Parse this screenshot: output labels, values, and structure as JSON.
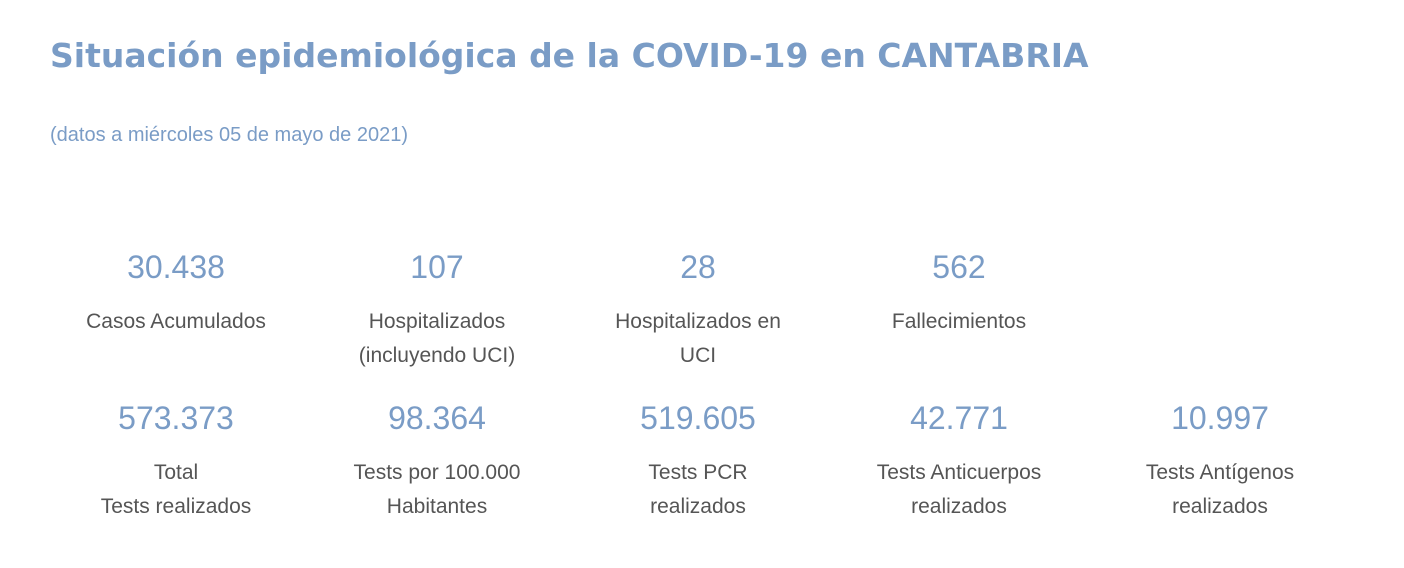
{
  "header": {
    "title": "Situación epidemiológica de la COVID-19 en CANTABRIA",
    "subtitle": "(datos a miércoles 05 de mayo de 2021)"
  },
  "colors": {
    "accent": "#7a9cc6",
    "label_text": "#555555",
    "background": "#ffffff"
  },
  "stats_row_1": [
    {
      "value": "30.438",
      "label": "Casos Acumulados"
    },
    {
      "value": "107",
      "label": "Hospitalizados\n(incluyendo UCI)"
    },
    {
      "value": "28",
      "label": "Hospitalizados en\nUCI"
    },
    {
      "value": "562",
      "label": "Fallecimientos"
    }
  ],
  "stats_row_2": [
    {
      "value": "573.373",
      "label": "Total\nTests realizados"
    },
    {
      "value": "98.364",
      "label": "Tests por 100.000\nHabitantes"
    },
    {
      "value": "519.605",
      "label": "Tests PCR\nrealizados"
    },
    {
      "value": "42.771",
      "label": "Tests Anticuerpos\nrealizados"
    },
    {
      "value": "10.997",
      "label": "Tests Antígenos\nrealizados"
    }
  ]
}
